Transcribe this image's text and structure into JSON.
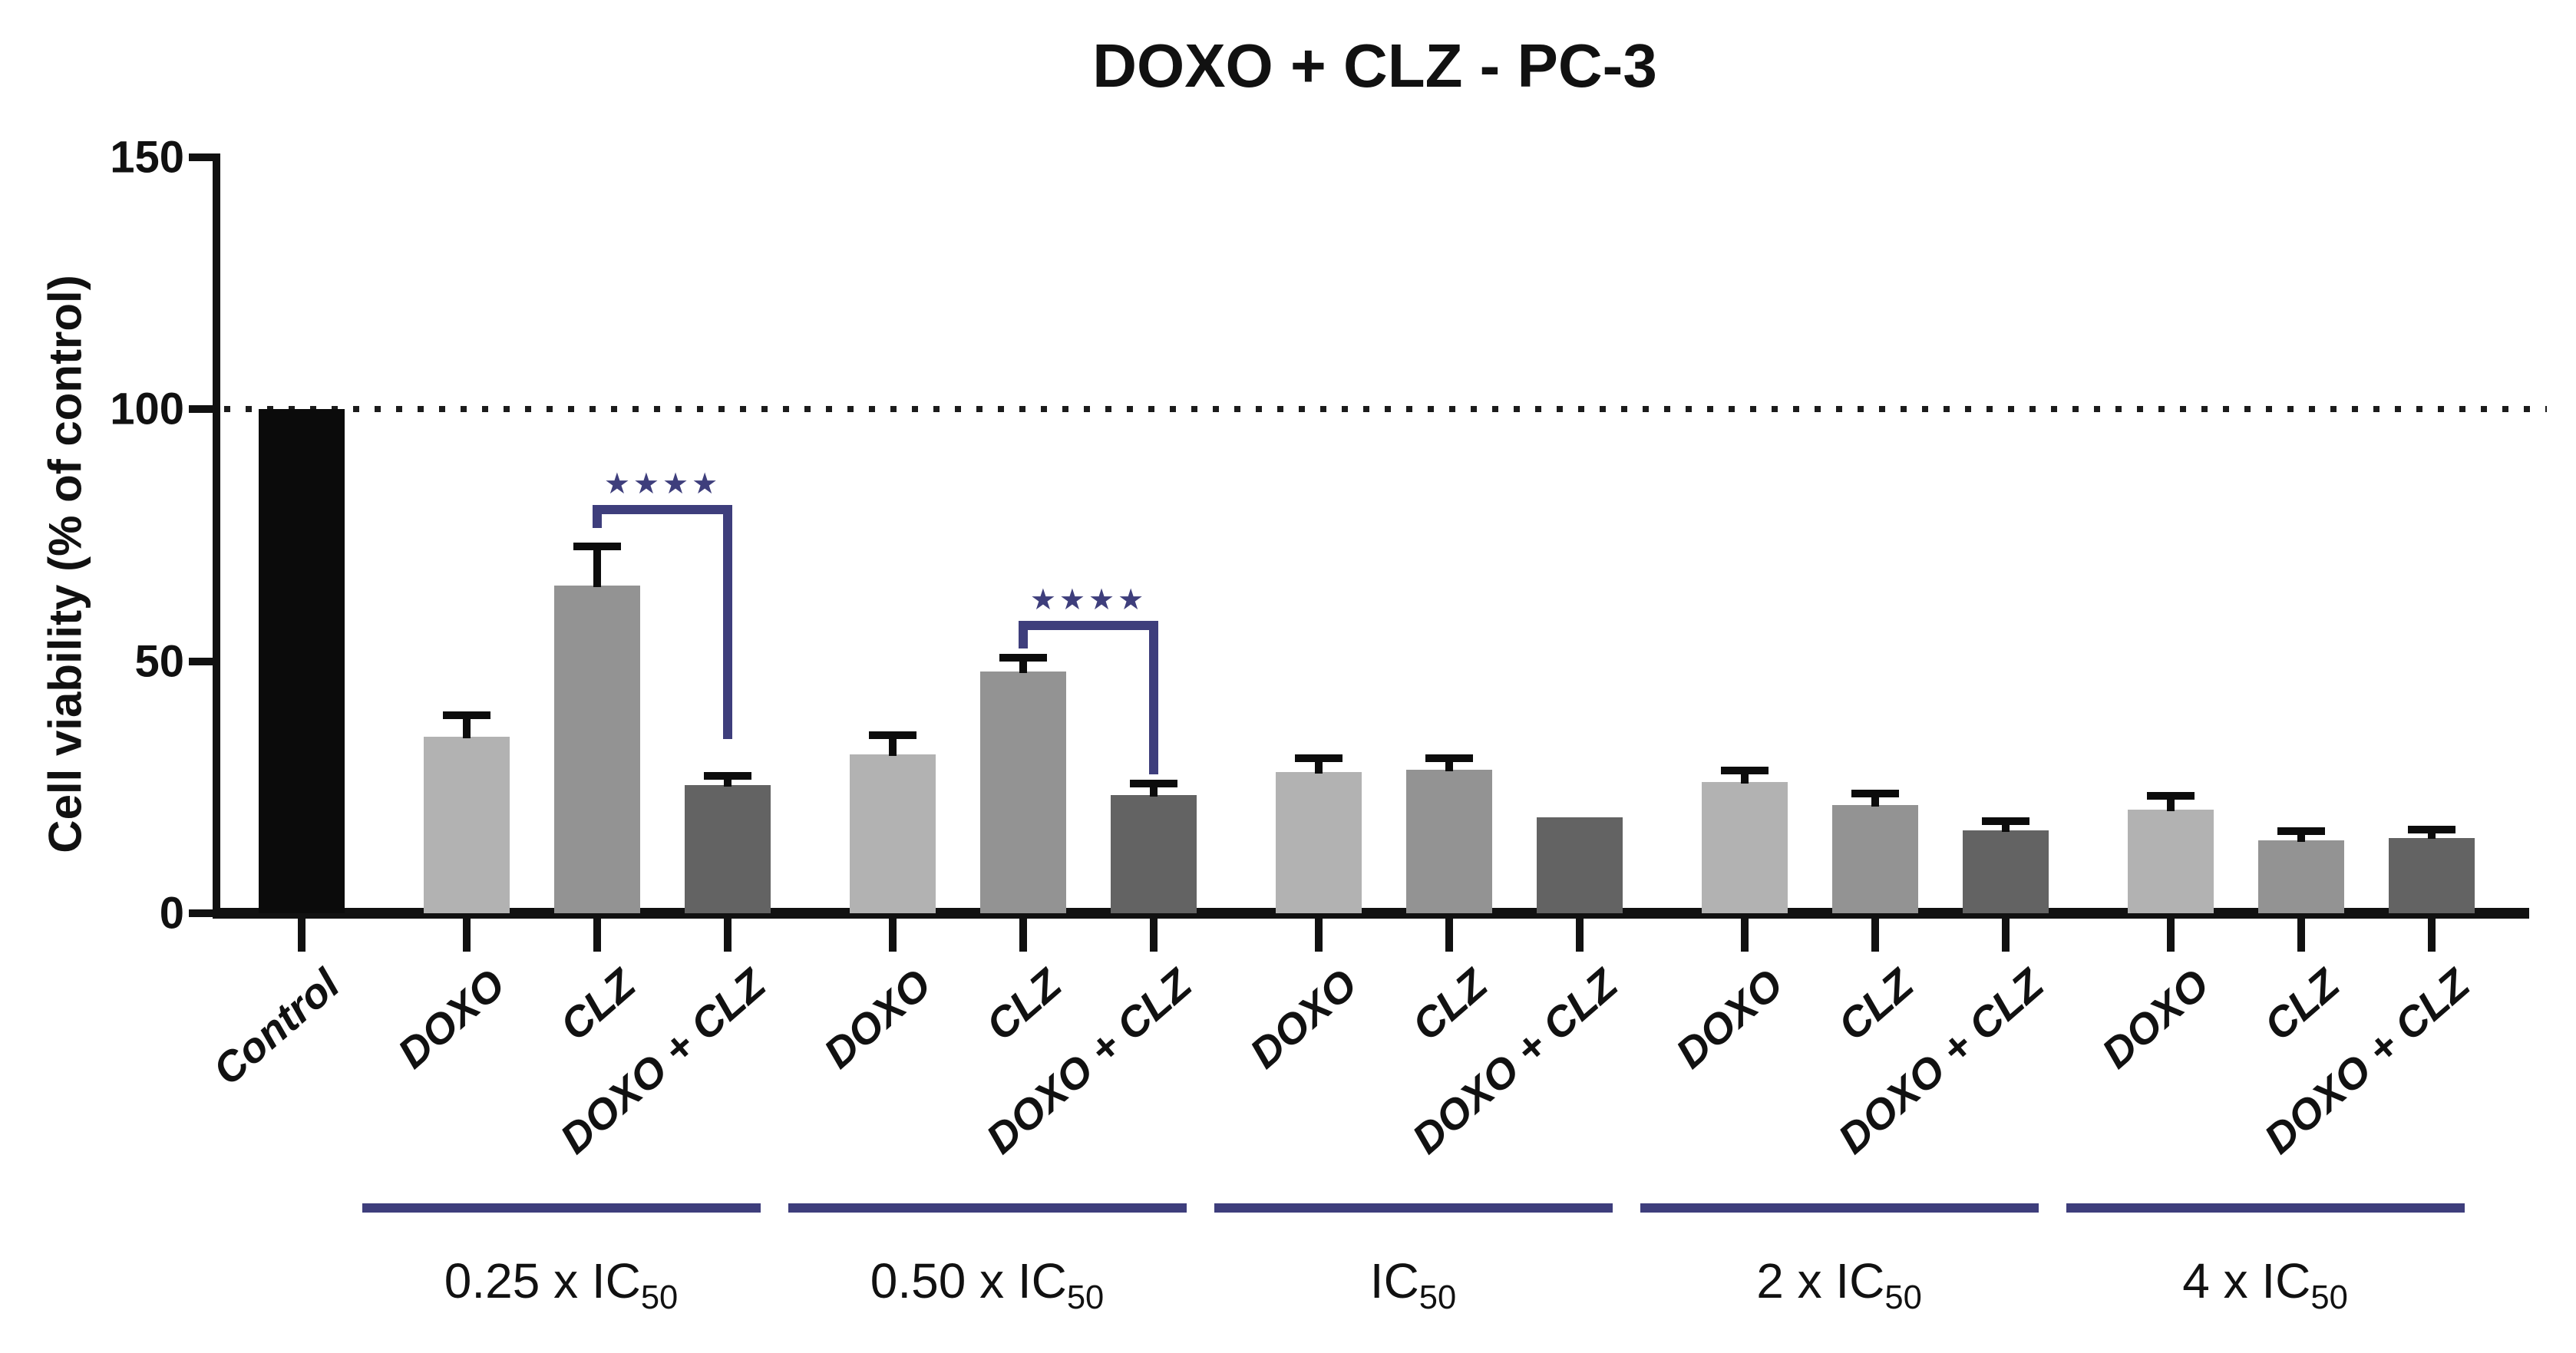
{
  "chart_data": {
    "type": "bar",
    "title": "DOXO + CLZ - PC-3",
    "ylabel": "Cell viability (% of control)",
    "ylim": [
      0,
      150
    ],
    "yticks": [
      0,
      50,
      100,
      150
    ],
    "reference_line_y": 100,
    "grid": false,
    "legend": "none",
    "series_colors": {
      "Control": "#0b0b0b",
      "DOXO": "#b2b2b2",
      "CLZ": "#939393",
      "DOXO + CLZ": "#636363"
    },
    "accent_color": "#3e3e7c",
    "axis_color": "#111111",
    "groups": [
      {
        "label": null,
        "bars": [
          {
            "name": "Control",
            "value": 100,
            "err": 0
          }
        ]
      },
      {
        "label": {
          "text": "0.25 x IC",
          "sub": "50"
        },
        "bars": [
          {
            "name": "DOXO",
            "value": 35,
            "err": 3.5
          },
          {
            "name": "CLZ",
            "value": 65,
            "err": 7
          },
          {
            "name": "DOXO + CLZ",
            "value": 25.5,
            "err": 1
          }
        ]
      },
      {
        "label": {
          "text": "0.50 x IC",
          "sub": "50"
        },
        "bars": [
          {
            "name": "DOXO",
            "value": 31.5,
            "err": 3
          },
          {
            "name": "CLZ",
            "value": 48,
            "err": 2
          },
          {
            "name": "DOXO + CLZ",
            "value": 23.5,
            "err": 1.5
          }
        ]
      },
      {
        "label": {
          "text": "IC",
          "sub": "50"
        },
        "bars": [
          {
            "name": "DOXO",
            "value": 28,
            "err": 2
          },
          {
            "name": "CLZ",
            "value": 28.5,
            "err": 1.5
          },
          {
            "name": "DOXO + CLZ",
            "value": 19,
            "err": 0
          }
        ]
      },
      {
        "label": {
          "text": "2 x IC",
          "sub": "50"
        },
        "bars": [
          {
            "name": "DOXO",
            "value": 26,
            "err": 1.5
          },
          {
            "name": "CLZ",
            "value": 21.5,
            "err": 1.5
          },
          {
            "name": "DOXO + CLZ",
            "value": 16.5,
            "err": 1
          }
        ]
      },
      {
        "label": {
          "text": "4 x IC",
          "sub": "50"
        },
        "bars": [
          {
            "name": "DOXO",
            "value": 20.5,
            "err": 2
          },
          {
            "name": "CLZ",
            "value": 14.5,
            "err": 1
          },
          {
            "name": "DOXO + CLZ",
            "value": 15,
            "err": 0.8
          }
        ]
      }
    ],
    "significance_brackets": [
      {
        "stars": "★★★★",
        "meaning": "****",
        "group_index": 1,
        "from_bar": 1,
        "to_bar": 2,
        "top_value": 81,
        "left_drop_to": 76.5,
        "right_drop_to": 34.5
      },
      {
        "stars": "★★★★",
        "meaning": "****",
        "group_index": 2,
        "from_bar": 1,
        "to_bar": 2,
        "top_value": 58,
        "left_drop_to": 52.5,
        "right_drop_to": 27.5
      }
    ]
  }
}
